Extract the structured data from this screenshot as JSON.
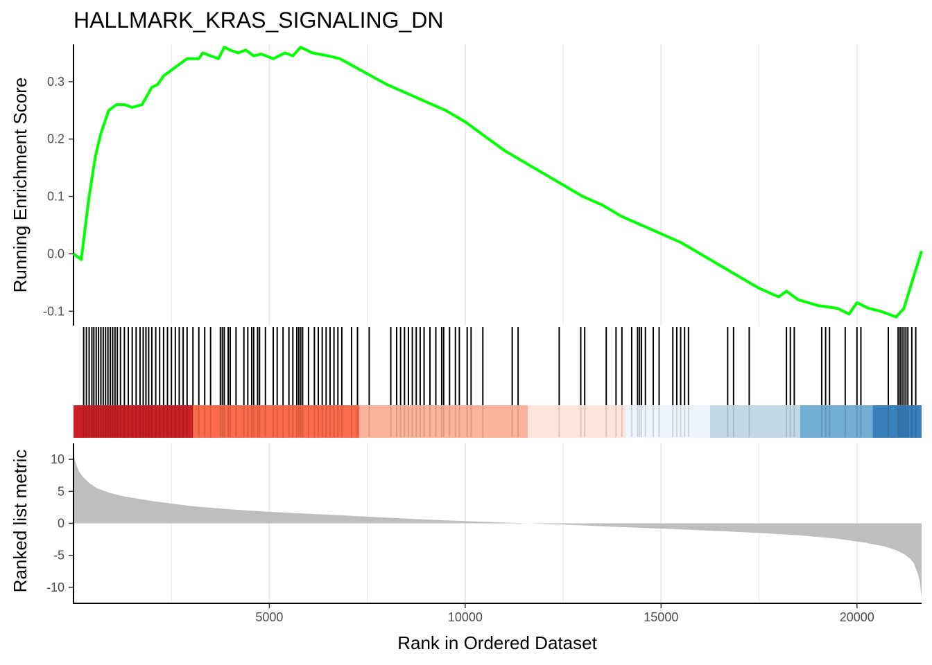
{
  "chart_data": {
    "type": "line",
    "title": "HALLMARK_KRAS_SIGNALING_DN",
    "xlabel": "Rank in Ordered Dataset",
    "xlim": [
      1,
      21650
    ],
    "x_ticks": [
      "5000",
      "10000",
      "15000",
      "20000"
    ],
    "x_tick_values": [
      5000,
      10000,
      15000,
      20000
    ],
    "colors": {
      "es_line": "#00ff00",
      "hit_bar": "#000000",
      "metric_fill": "#bebebe",
      "grid": "#ebebeb"
    },
    "grid": true,
    "panels": {
      "running_score": {
        "ylabel": "Running Enrichment Score",
        "ylim": [
          -0.125,
          0.365
        ],
        "y_ticks": [
          "-0.1",
          "0.0",
          "0.1",
          "0.2",
          "0.3"
        ],
        "y_tick_values": [
          -0.1,
          0.0,
          0.1,
          0.2,
          0.3
        ],
        "series": [
          {
            "x": [
              1,
              200,
              400,
              560,
              700,
              900,
              1100,
              1300,
              1500,
              1750,
              2000,
              2150,
              2300,
              2600,
              2900,
              3200,
              3300,
              3500,
              3700,
              3850,
              4000,
              4200,
              4400,
              4600,
              4800,
              5100,
              5400,
              5600,
              5800,
              6100,
              6500,
              6800,
              7200,
              7600,
              8000,
              8500,
              9000,
              9500,
              10000,
              10500,
              11000,
              11500,
              12000,
              12500,
              13000,
              13500,
              14000,
              14500,
              15000,
              15500,
              16000,
              16500,
              17000,
              17500,
              18000,
              18200,
              18500,
              19000,
              19500,
              19800,
              20000,
              20300,
              20600,
              20800,
              21000,
              21200,
              21400,
              21650
            ],
            "y": [
              0.0,
              -0.01,
              0.1,
              0.17,
              0.21,
              0.25,
              0.26,
              0.26,
              0.255,
              0.26,
              0.29,
              0.295,
              0.31,
              0.325,
              0.34,
              0.34,
              0.35,
              0.345,
              0.34,
              0.36,
              0.355,
              0.35,
              0.355,
              0.345,
              0.348,
              0.34,
              0.35,
              0.345,
              0.36,
              0.35,
              0.345,
              0.34,
              0.325,
              0.31,
              0.295,
              0.28,
              0.265,
              0.25,
              0.23,
              0.205,
              0.18,
              0.16,
              0.14,
              0.12,
              0.1,
              0.085,
              0.065,
              0.05,
              0.035,
              0.02,
              0.0,
              -0.02,
              -0.04,
              -0.06,
              -0.075,
              -0.065,
              -0.08,
              -0.09,
              -0.095,
              -0.105,
              -0.085,
              -0.095,
              -0.1,
              -0.105,
              -0.11,
              -0.095,
              -0.05,
              0.005
            ]
          }
        ]
      },
      "hits": {
        "positions": [
          260,
          330,
          400,
          470,
          520,
          580,
          640,
          700,
          760,
          820,
          880,
          940,
          1000,
          1060,
          1120,
          1200,
          1300,
          1400,
          1500,
          1600,
          1700,
          1780,
          1850,
          1920,
          2000,
          2100,
          2200,
          2300,
          2400,
          2500,
          2600,
          2700,
          2800,
          2900,
          3050,
          3200,
          3350,
          3500,
          3750,
          3800,
          3850,
          3950,
          4000,
          4150,
          4350,
          4450,
          4550,
          4600,
          4700,
          4750,
          4900,
          5100,
          5200,
          5350,
          5500,
          5600,
          5700,
          5750,
          5800,
          5850,
          6000,
          6150,
          6250,
          6350,
          6450,
          6550,
          6650,
          6750,
          6850,
          7100,
          7250,
          7550,
          8100,
          8250,
          8350,
          8450,
          8550,
          8650,
          8750,
          8850,
          8950,
          9100,
          9250,
          9400,
          9450,
          9600,
          9750,
          9850,
          10050,
          10150,
          10450,
          11200,
          11350,
          12400,
          12950,
          13050,
          13600,
          13850,
          14000,
          14250,
          14400,
          14450,
          14500,
          14600,
          14800,
          14950,
          15300,
          15400,
          15500,
          15600,
          15700,
          16700,
          16850,
          17250,
          18200,
          18300,
          18400,
          19100,
          19200,
          19300,
          19700,
          20000,
          20100,
          20800,
          21050,
          21100,
          21150,
          21200,
          21250,
          21300,
          21400,
          21500
        ]
      },
      "color_bands": [
        {
          "from": 1,
          "to": 3050,
          "color": "#cb2026"
        },
        {
          "from": 3050,
          "to": 7300,
          "color": "#fb6a4a"
        },
        {
          "from": 7300,
          "to": 11600,
          "color": "#fcb39b"
        },
        {
          "from": 11600,
          "to": 14100,
          "color": "#fee4db"
        },
        {
          "from": 14100,
          "to": 16250,
          "color": "#eef4fc"
        },
        {
          "from": 16250,
          "to": 18550,
          "color": "#c4d9e8"
        },
        {
          "from": 18550,
          "to": 20400,
          "color": "#74afd6"
        },
        {
          "from": 20400,
          "to": 21650,
          "color": "#3a80bd"
        }
      ],
      "ranked_metric": {
        "ylabel": "Ranked list metric",
        "ylim": [
          -12.5,
          12.5
        ],
        "y_ticks": [
          "-10",
          "-5",
          "0",
          "5",
          "10"
        ],
        "y_tick_values": [
          -10,
          -5,
          0,
          5,
          10
        ],
        "x": [
          1,
          30,
          80,
          150,
          250,
          400,
          600,
          900,
          1300,
          2000,
          3000,
          4000,
          5000,
          6000,
          7000,
          8000,
          9000,
          10000,
          11000,
          11600,
          12500,
          13500,
          14500,
          15500,
          16500,
          17500,
          18500,
          19500,
          20200,
          20700,
          21000,
          21200,
          21350,
          21450,
          21550,
          21600,
          21650
        ],
        "y": [
          12.0,
          10.0,
          9.0,
          8.0,
          7.2,
          6.3,
          5.5,
          4.8,
          4.2,
          3.5,
          2.7,
          2.2,
          1.8,
          1.5,
          1.2,
          0.9,
          0.6,
          0.35,
          0.12,
          0.0,
          -0.2,
          -0.45,
          -0.7,
          -0.95,
          -1.2,
          -1.5,
          -1.85,
          -2.4,
          -3.0,
          -3.6,
          -4.2,
          -4.8,
          -5.5,
          -6.2,
          -7.8,
          -9.0,
          -11.5
        ]
      }
    }
  }
}
